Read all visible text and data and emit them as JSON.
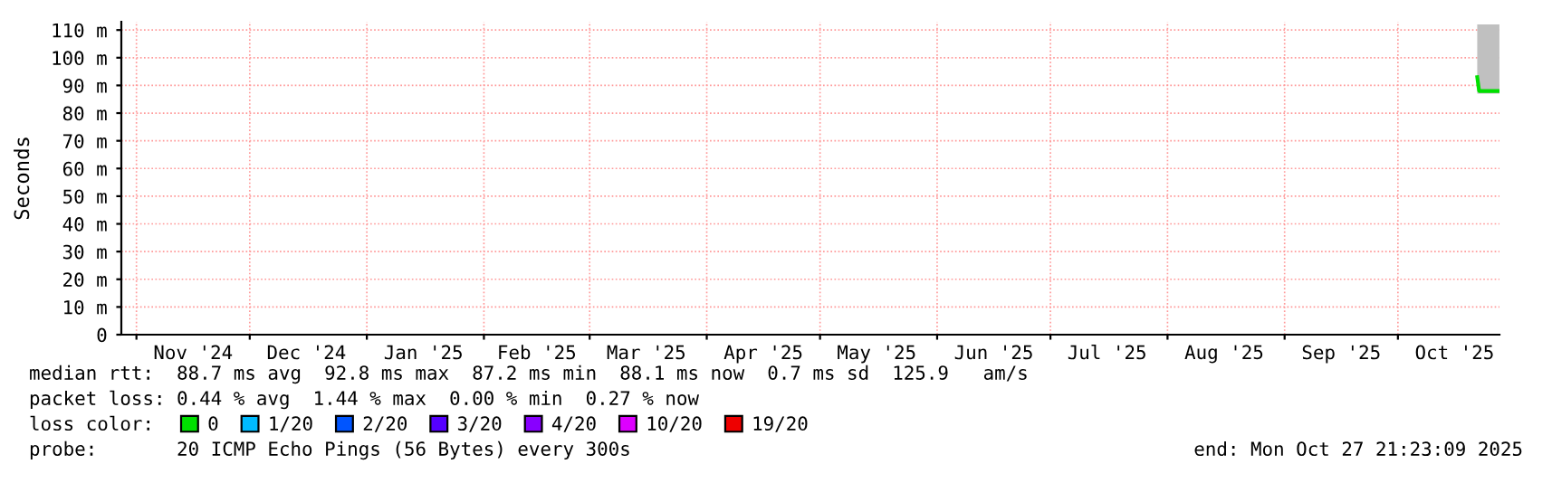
{
  "chart_data": {
    "type": "line",
    "ylabel": "Seconds",
    "x": [
      "2025-10-22T00:00",
      "2025-10-22T12:00",
      "2025-10-23T00:00",
      "2025-10-24T00:00",
      "2025-10-25T00:00",
      "2025-10-26T00:00",
      "2025-10-27T00:00",
      "2025-10-27T21:00"
    ],
    "series": [
      {
        "name": "0",
        "color": "#00e000",
        "values": [
          93,
          88,
          88,
          88,
          88,
          88,
          88,
          88
        ],
        "lower": [
          87,
          87,
          87,
          87,
          87,
          87,
          87,
          87
        ],
        "upper": [
          112,
          112,
          112,
          112,
          112,
          112,
          112,
          112
        ]
      },
      {
        "name": "1/20",
        "color": "#00bbff",
        "values": [
          null,
          null,
          null,
          null,
          null,
          null,
          null,
          null
        ]
      },
      {
        "name": "2/20",
        "color": "#0055ff",
        "values": [
          null,
          null,
          null,
          null,
          null,
          null,
          null,
          null
        ]
      },
      {
        "name": "3/20",
        "color": "#5500ff",
        "values": [
          null,
          null,
          null,
          null,
          null,
          null,
          null,
          null
        ]
      },
      {
        "name": "4/20",
        "color": "#8800ff",
        "values": [
          null,
          null,
          null,
          null,
          null,
          null,
          null,
          null
        ]
      },
      {
        "name": "10/20",
        "color": "#dd00ff",
        "values": [
          null,
          null,
          null,
          null,
          null,
          null,
          null,
          null
        ]
      },
      {
        "name": "19/20",
        "color": "#ee0000",
        "values": [
          null,
          null,
          null,
          null,
          null,
          null,
          null,
          null
        ]
      }
    ],
    "legend": "bottom",
    "legend_title": "loss color:",
    "grid": true,
    "xlim": [
      "2024-10-28T00:00",
      "2025-10-27T21:23"
    ],
    "xticks": [
      {
        "value": "2024-11-01",
        "label": null
      },
      {
        "value": "2024-11-16",
        "label": "Nov '24"
      },
      {
        "value": "2024-12-01",
        "label": null
      },
      {
        "value": "2024-12-16",
        "label": "Dec '24"
      },
      {
        "value": "2025-01-01",
        "label": null
      },
      {
        "value": "2025-01-16",
        "label": "Jan '25"
      },
      {
        "value": "2025-02-01",
        "label": null
      },
      {
        "value": "2025-02-15",
        "label": "Feb '25"
      },
      {
        "value": "2025-03-01",
        "label": null
      },
      {
        "value": "2025-03-16",
        "label": "Mar '25"
      },
      {
        "value": "2025-04-01",
        "label": null
      },
      {
        "value": "2025-04-16",
        "label": "Apr '25"
      },
      {
        "value": "2025-05-01",
        "label": null
      },
      {
        "value": "2025-05-16",
        "label": "May '25"
      },
      {
        "value": "2025-06-01",
        "label": null
      },
      {
        "value": "2025-06-16",
        "label": "Jun '25"
      },
      {
        "value": "2025-07-01",
        "label": null
      },
      {
        "value": "2025-07-16",
        "label": "Jul '25"
      },
      {
        "value": "2025-08-01",
        "label": null
      },
      {
        "value": "2025-08-16",
        "label": "Aug '25"
      },
      {
        "value": "2025-09-01",
        "label": null
      },
      {
        "value": "2025-09-16",
        "label": "Sep '25"
      },
      {
        "value": "2025-10-01",
        "label": null
      },
      {
        "value": "2025-10-16",
        "label": "Oct '25"
      }
    ],
    "ylim": [
      0,
      113
    ],
    "yticks": [
      0,
      {
        "value": 10,
        "label": "10 m"
      },
      {
        "value": 20,
        "label": "20 m"
      },
      {
        "value": 30,
        "label": "30 m"
      },
      {
        "value": 40,
        "label": "40 m"
      },
      {
        "value": 50,
        "label": "50 m"
      },
      {
        "value": 60,
        "label": "60 m"
      },
      {
        "value": 70,
        "label": "70 m"
      },
      {
        "value": 80,
        "label": "80 m"
      },
      {
        "value": 90,
        "label": "90 m"
      },
      {
        "value": 100,
        "label": "100 m"
      },
      {
        "value": 110,
        "label": "110 m"
      }
    ],
    "annotations": [
      "median rtt:  88.7 ms avg  92.8 ms max  87.2 ms min  88.1 ms now  0.7 ms sd  125.9   am/s",
      "packet loss: 0.44 % avg  1.44 % max  0.00 % min  0.27 % now",
      "probe:       20 ICMP Echo Pings (56 Bytes) every 300s",
      "end: Mon Oct 27 21:23:09 2025"
    ]
  }
}
